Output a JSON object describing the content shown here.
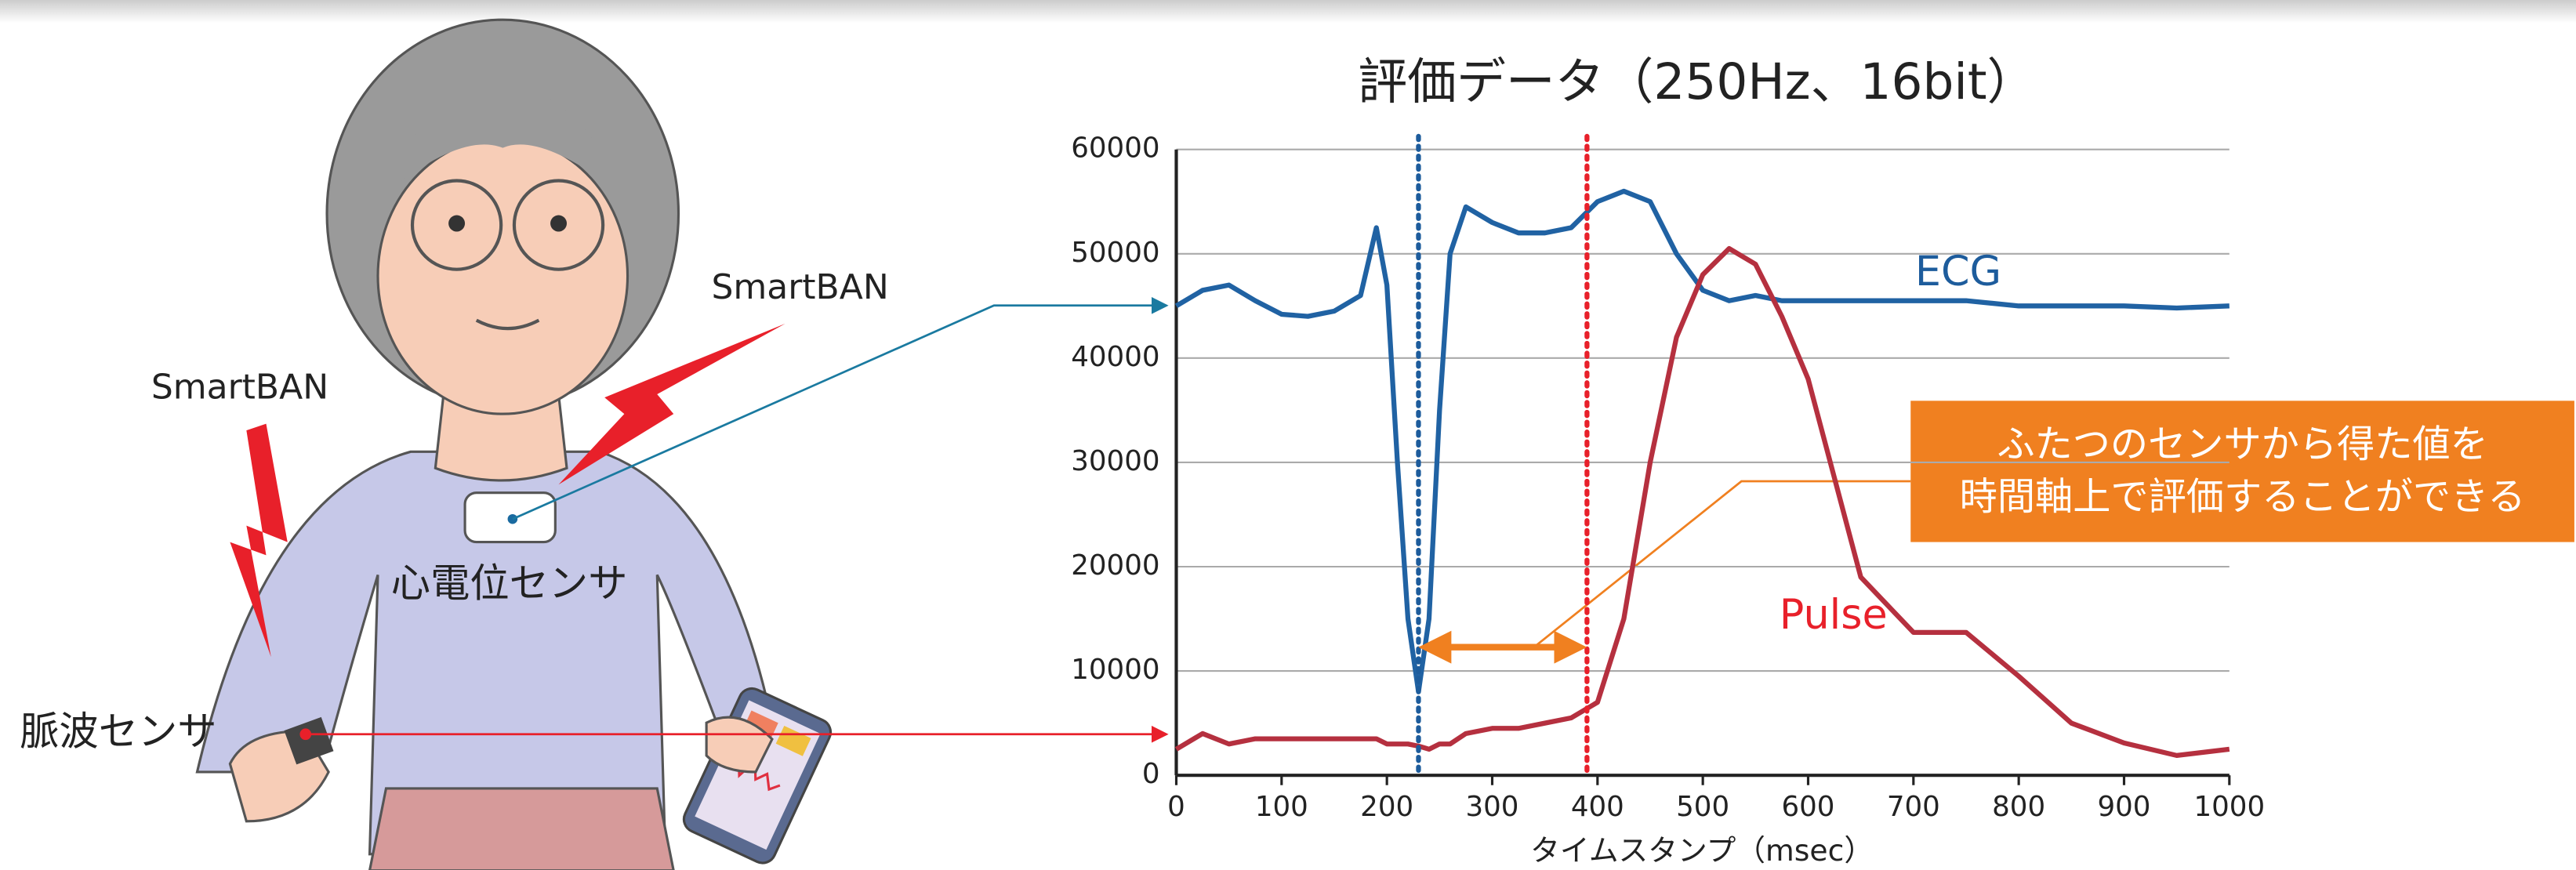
{
  "illustration": {
    "wireless_labels": [
      "SmartBAN",
      "SmartBAN"
    ],
    "ecg_sensor_label": "心電位センサ",
    "pulse_sensor_label": "脈波センサ"
  },
  "chart_data": {
    "type": "line",
    "title": "評価データ（250Hz、16bit）",
    "x_label": "タイムスタンプ（msec）",
    "x": [
      0,
      25,
      50,
      75,
      100,
      125,
      150,
      175,
      190,
      200,
      210,
      220,
      230,
      240,
      250,
      260,
      275,
      300,
      325,
      350,
      375,
      400,
      425,
      450,
      475,
      500,
      525,
      550,
      575,
      600,
      650,
      700,
      750,
      800,
      850,
      900,
      950,
      1000
    ],
    "series": [
      {
        "name": "ECG",
        "color": "#2062a3",
        "label_color": "#1d5c9c",
        "values": [
          45000,
          46500,
          47000,
          45500,
          44200,
          44000,
          44500,
          46000,
          52500,
          47000,
          30000,
          15000,
          8000,
          15000,
          35000,
          50000,
          54500,
          53000,
          52000,
          52000,
          52500,
          55000,
          56000,
          55000,
          50000,
          46500,
          45500,
          46000,
          45500,
          45500,
          45500,
          45500,
          45500,
          45000,
          45000,
          45000,
          44800,
          45000
        ]
      },
      {
        "name": "Pulse",
        "color": "#b5303f",
        "label_color": "#e8202a",
        "values": [
          2500,
          4000,
          3000,
          3500,
          3500,
          3500,
          3500,
          3500,
          3500,
          3000,
          3000,
          3000,
          2800,
          2500,
          3000,
          3000,
          4000,
          4500,
          4500,
          5000,
          5500,
          7000,
          15000,
          30000,
          42000,
          48000,
          50500,
          49000,
          44000,
          38000,
          19000,
          13700,
          13700,
          9500,
          5000,
          3100,
          1900,
          2500
        ]
      }
    ],
    "markers": [
      {
        "value": 230,
        "color": "#1d5c9c"
      },
      {
        "value": 390,
        "color": "#e8202a"
      }
    ],
    "annotation": [
      "ふたつのセンサから得た値を",
      "時間軸上で評価することができる"
    ],
    "xlim": [
      0,
      1000
    ],
    "ylim": [
      0,
      60000
    ],
    "xticks": [
      0,
      100,
      200,
      300,
      400,
      500,
      600,
      700,
      800,
      900,
      1000
    ],
    "yticks": [
      0,
      10000,
      20000,
      30000,
      40000,
      50000,
      60000
    ],
    "grid": true
  }
}
